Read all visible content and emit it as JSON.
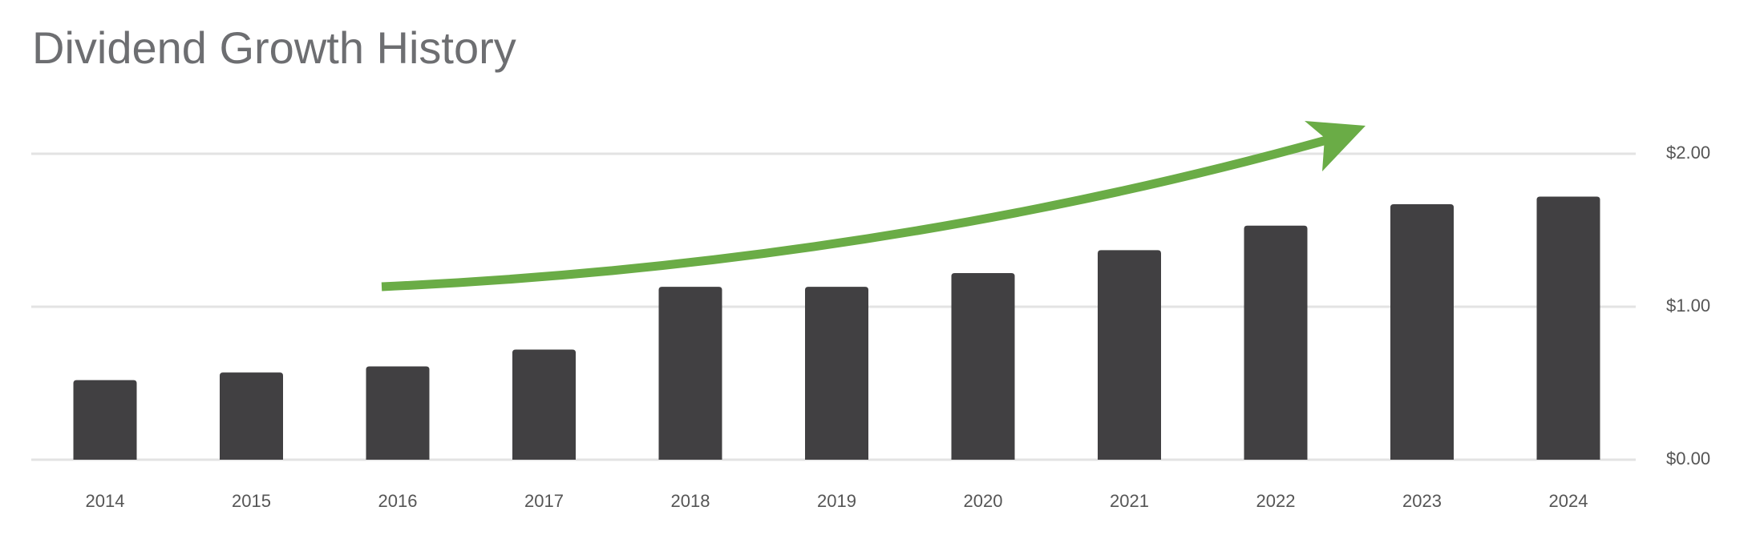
{
  "chart_data": {
    "type": "bar",
    "title": "Dividend Growth History",
    "categories": [
      "2014",
      "2015",
      "2016",
      "2017",
      "2018",
      "2019",
      "2020",
      "2021",
      "2022",
      "2023",
      "2024"
    ],
    "values": [
      0.52,
      0.57,
      0.61,
      0.72,
      1.13,
      1.13,
      1.22,
      1.37,
      1.53,
      1.67,
      1.72
    ],
    "color": "#414042",
    "ylim": [
      0,
      2
    ],
    "yticks": [
      {
        "value": 0,
        "label": "$0.00"
      },
      {
        "value": 1,
        "label": "$1.00"
      },
      {
        "value": 2,
        "label": "$2.00"
      }
    ],
    "grid": true
  }
}
